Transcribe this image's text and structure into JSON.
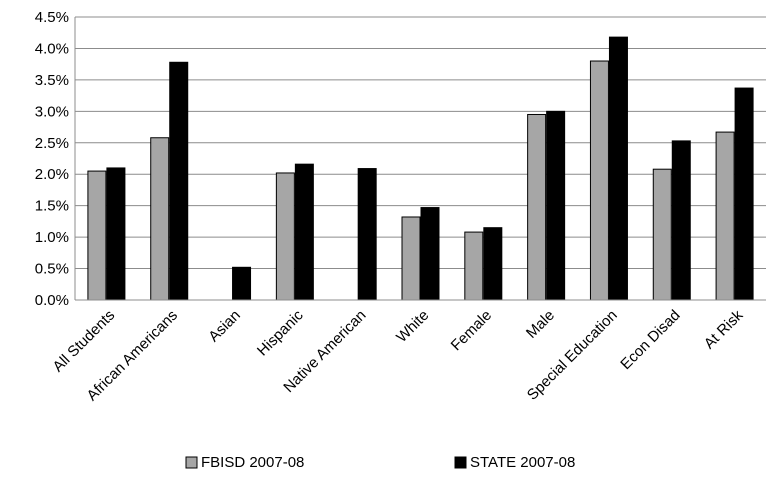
{
  "chart_data": {
    "type": "bar",
    "title": "",
    "xlabel": "",
    "ylabel": "",
    "categories": [
      "All Students",
      "African Americans",
      "Asian",
      "Hispanic",
      "Native American",
      "White",
      "Female",
      "Male",
      "Special Education",
      "Econ Disad",
      "At Risk"
    ],
    "series": [
      {
        "name": "FBISD 2007-08",
        "color": "#a6a6a6",
        "values": [
          2.05,
          2.58,
          0,
          2.02,
          0,
          1.32,
          1.08,
          2.95,
          3.8,
          2.08,
          2.67
        ]
      },
      {
        "name": "STATE 2007-08",
        "color": "#000000",
        "values": [
          2.1,
          3.78,
          0.52,
          2.16,
          2.09,
          1.47,
          1.15,
          3.0,
          4.18,
          2.53,
          3.37
        ]
      }
    ],
    "ylim": [
      0,
      4.5
    ],
    "yticks": [
      "0.0%",
      "0.5%",
      "1.0%",
      "1.5%",
      "2.0%",
      "2.5%",
      "3.0%",
      "3.5%",
      "4.0%",
      "4.5%"
    ],
    "grid": true,
    "legend_position": "bottom"
  }
}
